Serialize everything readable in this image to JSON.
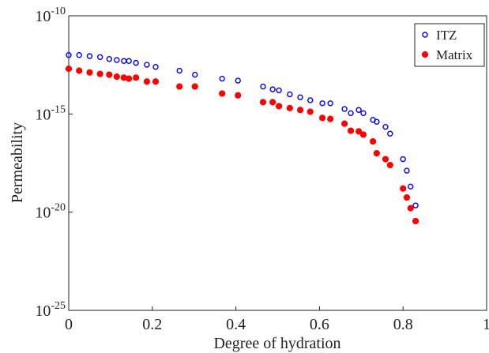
{
  "chart_data": {
    "type": "scatter",
    "xlabel": "Degree of hydration",
    "ylabel": "Permeability",
    "x": [
      0,
      0.025,
      0.05,
      0.075,
      0.097,
      0.115,
      0.132,
      0.144,
      0.161,
      0.187,
      0.208,
      0.265,
      0.302,
      0.367,
      0.405,
      0.465,
      0.488,
      0.503,
      0.529,
      0.554,
      0.578,
      0.607,
      0.626,
      0.66,
      0.675,
      0.694,
      0.705,
      0.728,
      0.737,
      0.758,
      0.769,
      0.8,
      0.809,
      0.818,
      0.83
    ],
    "series": [
      {
        "name": "ITZ",
        "color": "#0000ff",
        "marker": "open",
        "values": [
          1e-12,
          1e-12,
          8.9e-13,
          7.9e-13,
          6.3e-13,
          5.6e-13,
          5e-13,
          5e-13,
          4e-13,
          3.2e-13,
          2.5e-13,
          1.6e-13,
          1e-13,
          6.3e-14,
          5e-14,
          2.5e-14,
          1.8e-14,
          1.6e-14,
          1e-14,
          7.1e-15,
          5e-15,
          3.5e-15,
          3.5e-15,
          1.8e-15,
          1.1e-15,
          1.6e-15,
          1.1e-15,
          5e-16,
          4e-16,
          2.2e-16,
          1e-16,
          5e-18,
          1.3e-18,
          2e-19,
          2.2e-20
        ]
      },
      {
        "name": "Matrix",
        "color": "#ff0000",
        "marker": "filled",
        "values": [
          2e-13,
          1.6e-13,
          1.3e-13,
          1.1e-13,
          1e-13,
          7.9e-14,
          7.1e-14,
          6.3e-14,
          7.1e-14,
          4.5e-14,
          4.5e-14,
          2.5e-14,
          2.5e-14,
          1.1e-14,
          8.9e-15,
          4e-15,
          4e-15,
          2.5e-15,
          2e-15,
          1.6e-15,
          1.3e-15,
          6.3e-16,
          5.6e-16,
          3.2e-16,
          1.4e-16,
          1.3e-16,
          8.9e-17,
          4e-17,
          1e-17,
          5e-18,
          2.5e-18,
          1.6e-19,
          5.6e-20,
          1.6e-20,
          3.5e-21
        ]
      }
    ],
    "xlim": [
      0,
      1
    ],
    "xticks": [
      0,
      0.2,
      0.4,
      0.6,
      0.8,
      1
    ],
    "ylim": [
      1e-25,
      1e-10
    ],
    "ylog": true,
    "yticks": [
      {
        "value": 1e-25,
        "label": "10",
        "exponent": "-25"
      },
      {
        "value": 1e-20,
        "label": "10",
        "exponent": "-20"
      },
      {
        "value": 1e-15,
        "label": "10",
        "exponent": "-15"
      },
      {
        "value": 1e-10,
        "label": "10",
        "exponent": "-10"
      }
    ],
    "legend": "top-right"
  }
}
